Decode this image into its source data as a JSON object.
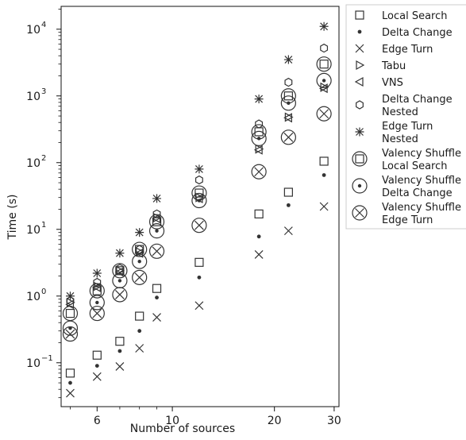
{
  "chart_data": {
    "type": "scatter",
    "xlabel": "Number of sources",
    "ylabel": "Time (s)",
    "x_scale": "log",
    "y_scale": "log",
    "xlim": [
      4.7,
      31
    ],
    "ylim": [
      0.022,
      22000
    ],
    "x_ticks": [
      {
        "value": 6,
        "label": "6"
      },
      {
        "value": 10,
        "label": "10"
      },
      {
        "value": 20,
        "label": "20"
      },
      {
        "value": 30,
        "label": "30"
      }
    ],
    "y_ticks": [
      {
        "value": 0.1,
        "label": "10",
        "exp": "−1"
      },
      {
        "value": 1,
        "label": "10",
        "exp": "0"
      },
      {
        "value": 10,
        "label": "10",
        "exp": "1"
      },
      {
        "value": 100,
        "label": "10",
        "exp": "2"
      },
      {
        "value": 1000,
        "label": "10",
        "exp": "3"
      },
      {
        "value": 10000,
        "label": "10",
        "exp": "4"
      }
    ],
    "grid": false,
    "legend_position": "outside-right",
    "x": [
      5,
      6,
      7,
      8,
      9,
      12,
      18,
      22,
      28
    ],
    "series": [
      {
        "name": "Local Search",
        "marker": "square",
        "values": [
          0.07,
          0.13,
          0.21,
          0.5,
          1.3,
          3.2,
          17,
          36,
          105
        ]
      },
      {
        "name": "Delta Change",
        "marker": "dot",
        "values": [
          0.05,
          0.09,
          0.15,
          0.3,
          0.95,
          1.9,
          7.8,
          23,
          65
        ]
      },
      {
        "name": "Edge Turn",
        "marker": "x",
        "values": [
          0.035,
          0.062,
          0.088,
          0.165,
          0.48,
          0.72,
          4.2,
          9.5,
          22
        ]
      },
      {
        "name": "Tabu",
        "marker": "triangle-right",
        "values": [
          0.8,
          1.4,
          2.4,
          4.6,
          15,
          30,
          160,
          480,
          1350
        ]
      },
      {
        "name": "VNS",
        "marker": "triangle-left",
        "values": [
          0.75,
          1.35,
          2.3,
          4.4,
          14.5,
          29,
          155,
          470,
          1300
        ]
      },
      {
        "name": "Delta Change\nNested",
        "marker": "hexagon",
        "values": [
          0.85,
          1.6,
          2.6,
          5,
          17,
          55,
          380,
          1600,
          5200
        ]
      },
      {
        "name": "Edge Turn\nNested",
        "marker": "star",
        "values": [
          1,
          2.2,
          4.4,
          9,
          29,
          80,
          900,
          3500,
          11000
        ]
      },
      {
        "name": "Valency Shuffle\nLocal Search",
        "marker": "circle-square",
        "values": [
          0.55,
          1.2,
          2.4,
          5,
          13,
          35,
          290,
          1000,
          3000
        ]
      },
      {
        "name": "Valency Shuffle\nDelta Change",
        "marker": "circle-dot",
        "values": [
          0.33,
          0.8,
          1.7,
          3.3,
          9.5,
          27,
          230,
          780,
          1700
        ]
      },
      {
        "name": "Valency Shuffle\nEdge Turn",
        "marker": "circle-x",
        "values": [
          0.27,
          0.55,
          1.05,
          1.9,
          4.7,
          11.5,
          73,
          240,
          540
        ]
      }
    ]
  }
}
